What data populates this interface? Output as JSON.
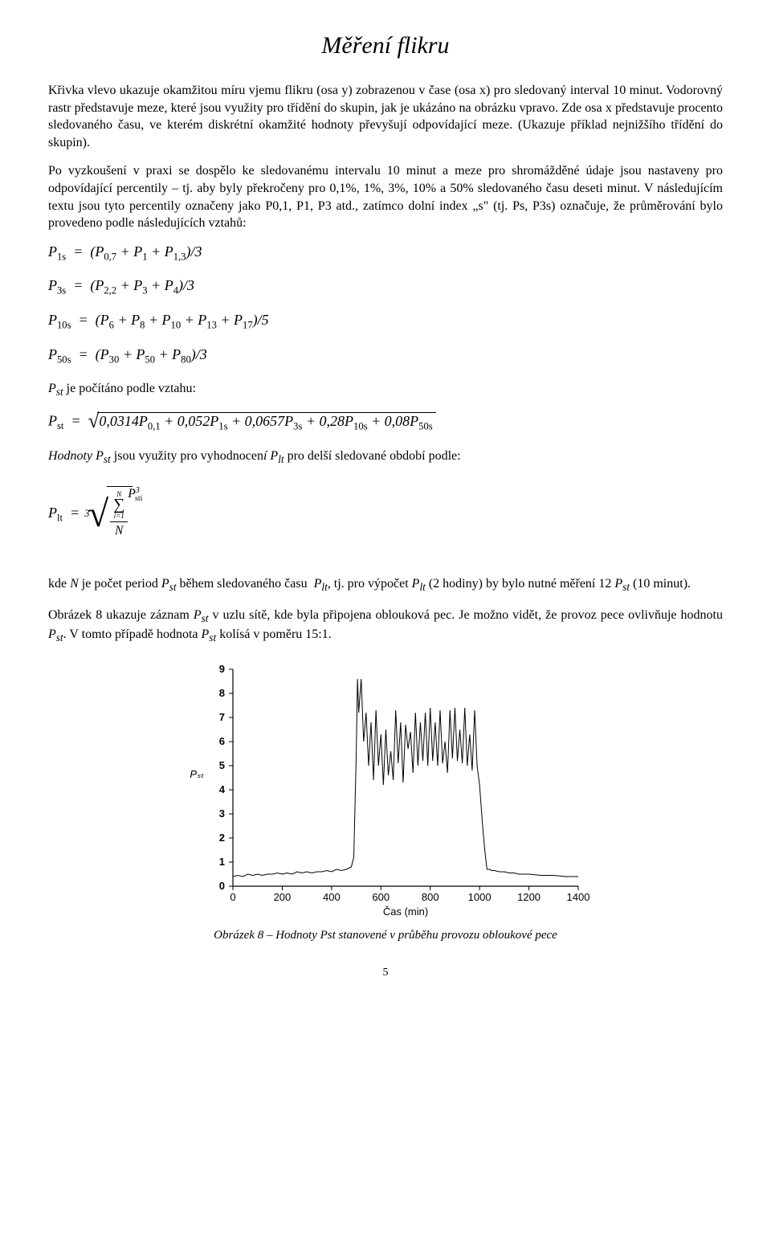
{
  "title": "Měření flikru",
  "para1": "Křivka vlevo ukazuje okamžitou míru vjemu flikru (osa y) zobrazenou v čase (osa x) pro sledovaný interval 10 minut. Vodorovný rastr představuje meze, které jsou využity pro třídění do skupin, jak je ukázáno na obrázku vpravo. Zde osa x představuje procento sledovaného času, ve kterém diskrétní okamžité hodnoty převyšují odpovídající meze. (Ukazuje příklad nejnižšího třídění do skupin).",
  "para2": "Po vyzkoušení v praxi se dospělo ke sledovanému intervalu 10 minut a meze pro shromážděné údaje jsou nastaveny pro odpovídající percentily – tj. aby byly překročeny pro 0,1%, 1%, 3%, 10% a 50% sledovaného času deseti minut. V následujícím textu jsou tyto percentily označeny jako P0,1, P1, P3 atd., zatímco dolní index „s\" (tj. Ps, P3s) označuje, že průměrování bylo provedeno podle následujících vztahů:",
  "formulas": {
    "p1s": "P₁ₛ = (P₀,₇ + P₁ + P₁,₃)/3",
    "p3s": "P₃ₛ = (P₂,₂ + P₃ + P₄)/3",
    "p10s": "P₁₀ₛ = (P₆ + P₈ + P₁₀ + P₁₃ + P₁₇)/5",
    "p50s": "P₅₀ₛ = (P₃₀ + P₅₀ + P₈₀)/3"
  },
  "pst_intro": "Pₛₜ je počítáno podle vztahu:",
  "pst_formula_inner": "0,0314P₀,₁ + 0,052P₁ₛ + 0,0657P₃ₛ + 0,28P₁₀ₛ + 0,08P₅₀ₛ",
  "plt_intro": "Hodnoty Pₛₜ jsou využity pro vyhodnocení Pₗₜ pro delší sledované období podle:",
  "plt_sum_upper": "N",
  "plt_sum_lower": "i=1",
  "plt_sum_term": "P³ₛₜᵢ",
  "plt_denom": "N",
  "para3": "kde N je počet period Pₛₜ během sledovaného času Pₗₜ, tj. pro výpočet Pₗₜ (2 hodiny) by bylo nutné měření 12 Pₛₜ (10 minut).",
  "para4": "Obrázek 8 ukazuje záznam Pₛₜ v uzlu sítě, kde byla připojena oblouková pec. Je možno vidět, že provoz pece ovlivňuje hodnotu Pₛₜ. V tomto případě hodnota Pₛₜ kolísá v poměru 15:1.",
  "chart": {
    "type": "line",
    "ylabel": "Pₛₜ",
    "xlabel": "Čas (min)",
    "xlim": [
      0,
      1400
    ],
    "ylim": [
      0,
      9
    ],
    "xticks": [
      0,
      200,
      400,
      600,
      800,
      1000,
      1200,
      1400
    ],
    "yticks": [
      0,
      1,
      2,
      3,
      4,
      5,
      6,
      7,
      8,
      9
    ],
    "line_color": "#000000",
    "line_width": 1,
    "background_color": "#ffffff",
    "axis_color": "#000000",
    "tick_fontsize": 13,
    "label_fontsize": 13,
    "data_x": [
      0,
      20,
      40,
      60,
      80,
      100,
      120,
      140,
      160,
      180,
      200,
      220,
      240,
      260,
      280,
      300,
      320,
      340,
      360,
      380,
      400,
      420,
      440,
      460,
      480,
      490,
      500,
      505,
      510,
      520,
      530,
      540,
      550,
      560,
      570,
      580,
      590,
      600,
      610,
      620,
      630,
      640,
      650,
      660,
      670,
      680,
      690,
      700,
      710,
      720,
      730,
      740,
      750,
      760,
      770,
      780,
      790,
      800,
      810,
      820,
      830,
      840,
      850,
      860,
      870,
      880,
      890,
      900,
      910,
      920,
      930,
      940,
      950,
      960,
      970,
      980,
      990,
      1000,
      1010,
      1020,
      1030,
      1040,
      1050,
      1060,
      1080,
      1100,
      1120,
      1140,
      1160,
      1180,
      1200,
      1250,
      1300,
      1350,
      1400
    ],
    "data_y": [
      0.4,
      0.45,
      0.4,
      0.5,
      0.45,
      0.5,
      0.45,
      0.5,
      0.5,
      0.55,
      0.5,
      0.55,
      0.5,
      0.6,
      0.55,
      0.6,
      0.55,
      0.6,
      0.6,
      0.65,
      0.6,
      0.7,
      0.65,
      0.7,
      0.8,
      1.2,
      5.5,
      8.6,
      7.2,
      8.6,
      6.0,
      7.2,
      5.0,
      6.8,
      4.4,
      7.3,
      5.0,
      6.3,
      4.2,
      6.5,
      4.6,
      5.6,
      4.4,
      7.3,
      5.1,
      6.8,
      4.3,
      6.7,
      5.7,
      6.4,
      4.7,
      7.2,
      5.0,
      6.8,
      5.2,
      7.2,
      5.0,
      7.4,
      5.2,
      6.8,
      5.0,
      7.3,
      5.1,
      6.0,
      4.7,
      7.3,
      5.3,
      7.4,
      5.2,
      6.5,
      5.1,
      7.4,
      5.0,
      6.3,
      4.8,
      7.3,
      5.0,
      4.2,
      2.8,
      1.6,
      0.7,
      0.7,
      0.65,
      0.65,
      0.6,
      0.6,
      0.55,
      0.55,
      0.5,
      0.5,
      0.5,
      0.45,
      0.45,
      0.4,
      0.4
    ]
  },
  "caption": "Obrázek 8 – Hodnoty Pst stanovené v průběhu provozu obloukové pece",
  "page_number": "5"
}
